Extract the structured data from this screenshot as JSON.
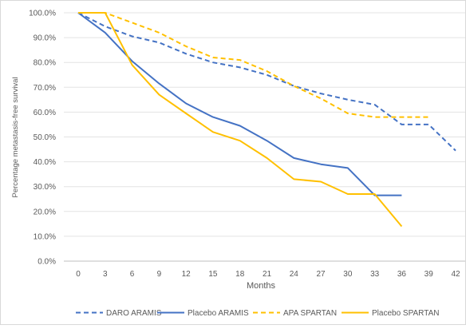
{
  "chart_data": {
    "type": "line",
    "title": "",
    "xlabel": "Months",
    "ylabel": "Percentage metastasis-free survival",
    "x_ticks": [
      0,
      3,
      6,
      9,
      12,
      15,
      18,
      21,
      24,
      27,
      30,
      33,
      36,
      39,
      42
    ],
    "y_ticks": [
      "0.0%",
      "10.0%",
      "20.0%",
      "30.0%",
      "40.0%",
      "50.0%",
      "60.0%",
      "70.0%",
      "80.0%",
      "90.0%",
      "100.0%"
    ],
    "xlim": [
      0,
      42
    ],
    "ylim": [
      0,
      100
    ],
    "grid": "horizontal",
    "legend_position": "bottom",
    "series": [
      {
        "name": "DARO ARAMIS",
        "color": "#4472C4",
        "style": "dashed",
        "x": [
          0,
          3,
          6,
          9,
          12,
          15,
          18,
          21,
          24,
          27,
          30,
          33,
          36,
          39,
          42
        ],
        "values": [
          100,
          94.5,
          90.5,
          88,
          83.5,
          80,
          78,
          75,
          70.5,
          67.5,
          65,
          63,
          55,
          55,
          44.5
        ]
      },
      {
        "name": "Placebo ARAMIS",
        "color": "#4472C4",
        "style": "solid",
        "x": [
          0,
          3,
          6,
          9,
          12,
          15,
          18,
          21,
          24,
          27,
          30,
          33,
          36
        ],
        "values": [
          100,
          92,
          80.5,
          71.5,
          63.5,
          58,
          54.5,
          48.5,
          41.5,
          39,
          37.5,
          26.5,
          26.5
        ]
      },
      {
        "name": "APA SPARTAN",
        "color": "#FFC000",
        "style": "dashed",
        "x": [
          0,
          3,
          6,
          9,
          12,
          15,
          18,
          21,
          24,
          27,
          30,
          33,
          36,
          39
        ],
        "values": [
          100,
          100,
          96,
          92,
          86.5,
          82,
          81,
          76.5,
          70.5,
          65.5,
          59.5,
          58,
          58,
          58
        ]
      },
      {
        "name": "Placebo SPARTAN",
        "color": "#FFC000",
        "style": "solid",
        "x": [
          0,
          3,
          6,
          9,
          12,
          15,
          18,
          21,
          24,
          27,
          30,
          33,
          36
        ],
        "values": [
          100,
          100,
          79,
          67,
          59.5,
          52,
          48.5,
          41.5,
          33,
          32,
          27,
          27,
          14
        ]
      }
    ]
  }
}
